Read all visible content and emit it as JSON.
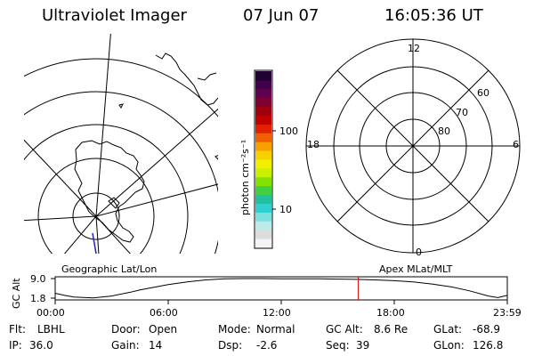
{
  "header": {
    "instrument": "Ultraviolet Imager",
    "date": "07 Jun 07",
    "time": "16:05:36 UT"
  },
  "labels": {
    "geo_frame": "Geographic Lat/Lon",
    "mag_frame": "Apex MLat/MLT",
    "colorbar_unit": "photon cm⁻²s⁻¹"
  },
  "colorbar": {
    "ticks": [
      "100",
      "10"
    ],
    "scale": "log",
    "colors": [
      "#f4f4f4",
      "#dcdcdc",
      "#bfe8e8",
      "#7de0e0",
      "#30d0d0",
      "#20c0a0",
      "#40d040",
      "#80e000",
      "#c8f000",
      "#f0f000",
      "#f8d000",
      "#f8a000",
      "#f06000",
      "#e02000",
      "#c00000",
      "#a00010",
      "#800030",
      "#600050",
      "#40004a",
      "#200030"
    ]
  },
  "polar_plot": {
    "mlt_labels": [
      "12",
      "6",
      "0",
      "18"
    ],
    "lat_labels": [
      "60",
      "70",
      "80"
    ]
  },
  "timeline": {
    "ylabel": "GC Alt",
    "yticks": [
      "9.0",
      "1.8"
    ],
    "xticks": [
      "00:00",
      "06:00",
      "12:00",
      "18:00",
      "23:59"
    ]
  },
  "chart_data": {
    "type": "line",
    "title": "",
    "xlabel": "",
    "ylabel": "GC Alt",
    "x_range_hours": [
      0,
      24
    ],
    "ylim": [
      1.8,
      9.0
    ],
    "series": [
      {
        "x": [
          0,
          0.5,
          1,
          2,
          3,
          4,
          4.5,
          5,
          6,
          7,
          8,
          9,
          10,
          11,
          12,
          13,
          14,
          15,
          16,
          17,
          18,
          19,
          20,
          21,
          22,
          23,
          23.5,
          24
        ],
        "values": [
          3.6,
          2.8,
          2.2,
          1.9,
          2.6,
          4.0,
          4.8,
          5.5,
          6.8,
          7.8,
          8.5,
          8.9,
          9.0,
          9.0,
          8.9,
          8.9,
          8.9,
          8.8,
          8.7,
          8.5,
          8.2,
          7.8,
          7.0,
          6.0,
          4.5,
          2.6,
          2.0,
          2.8
        ]
      }
    ],
    "marker_time_hours": 16.09,
    "marker_color": "#e00000"
  },
  "info": {
    "row1": [
      {
        "key": "Flt:",
        "value": "LBHL"
      },
      {
        "key": "Door:",
        "value": "Open"
      },
      {
        "key": "Mode:",
        "value": "Normal"
      },
      {
        "key": "GC Alt:",
        "value": "8.6 Re"
      },
      {
        "key": "GLat:",
        "value": "-68.9"
      }
    ],
    "row2": [
      {
        "key": "IP:",
        "value": "36.0"
      },
      {
        "key": "Gain:",
        "value": "14"
      },
      {
        "key": "Dsp:",
        "value": "-2.6"
      },
      {
        "key": "Seq:",
        "value": "39"
      },
      {
        "key": "GLon:",
        "value": "126.8"
      }
    ]
  }
}
